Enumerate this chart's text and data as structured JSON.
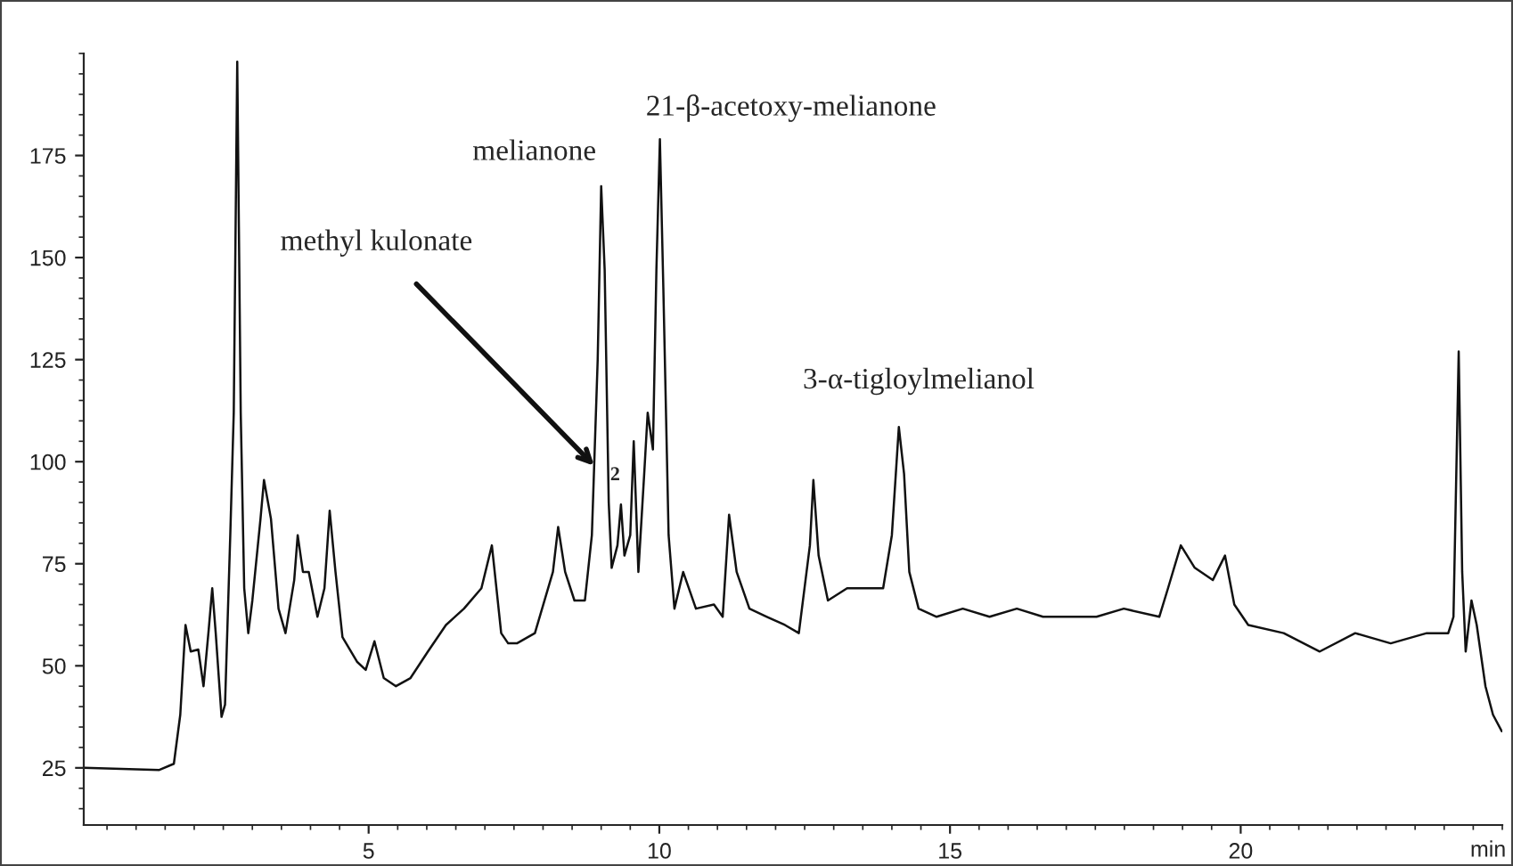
{
  "chart_data": {
    "type": "line",
    "xlabel": "min",
    "x": [
      0.1,
      1.4,
      1.65,
      1.76,
      1.85,
      1.94,
      2.07,
      2.16,
      2.25,
      2.31,
      2.37,
      2.47,
      2.53,
      2.62,
      2.68,
      2.74,
      2.8,
      2.86,
      2.93,
      3.0,
      3.14,
      3.2,
      3.32,
      3.45,
      3.57,
      3.72,
      3.78,
      3.87,
      3.97,
      4.12,
      4.24,
      4.33,
      4.43,
      4.55,
      4.8,
      4.95,
      5.1,
      5.26,
      5.47,
      5.72,
      6.02,
      6.33,
      6.64,
      6.94,
      7.12,
      7.28,
      7.4,
      7.55,
      7.86,
      8.17,
      8.26,
      8.38,
      8.54,
      8.72,
      8.84,
      8.94,
      9.0,
      9.06,
      9.13,
      9.18,
      9.28,
      9.34,
      9.4,
      9.5,
      9.56,
      9.64,
      9.74,
      9.8,
      9.89,
      9.95,
      10.01,
      10.07,
      10.16,
      10.26,
      10.41,
      10.63,
      10.94,
      11.09,
      11.2,
      11.33,
      11.55,
      11.85,
      12.16,
      12.4,
      12.59,
      12.65,
      12.74,
      12.9,
      13.23,
      13.54,
      13.85,
      14.0,
      14.12,
      14.21,
      14.3,
      14.46,
      14.77,
      15.22,
      15.68,
      16.15,
      16.6,
      17.06,
      17.52,
      17.99,
      18.6,
      18.75,
      18.97,
      19.21,
      19.52,
      19.73,
      19.89,
      20.13,
      20.74,
      21.36,
      21.97,
      22.58,
      23.2,
      23.57,
      23.66,
      23.75,
      23.81,
      23.87,
      23.97,
      24.06,
      24.21,
      24.34,
      24.49
    ],
    "series": [
      {
        "color": "#111111",
        "values": [
          25,
          24.5,
          26,
          38,
          60,
          53.5,
          54,
          45,
          59,
          69,
          58,
          37.5,
          40.5,
          82,
          112,
          198,
          112,
          69,
          58,
          66,
          86,
          95.5,
          86,
          64,
          58,
          71,
          82,
          73,
          73,
          62,
          69,
          88,
          73,
          57,
          51,
          49,
          56,
          47,
          45,
          47,
          53.5,
          60,
          64,
          69,
          79.5,
          58,
          55.5,
          55.5,
          58,
          73,
          84,
          73,
          66,
          66,
          82,
          125,
          167.5,
          147,
          90,
          74,
          79.5,
          89.5,
          77,
          82,
          105,
          73,
          97,
          112,
          103,
          147,
          179,
          142,
          82,
          64,
          73,
          64,
          65,
          62,
          87,
          73,
          64,
          62,
          60,
          58,
          79.5,
          95.5,
          77,
          66,
          69,
          69,
          69,
          82,
          108.5,
          97,
          73,
          64,
          62,
          64,
          62,
          64,
          62,
          62,
          62,
          64,
          62,
          69,
          79.5,
          74,
          71,
          77,
          65,
          60,
          58,
          53.5,
          58,
          55.5,
          58,
          58,
          62,
          127,
          73,
          53.5,
          66,
          60,
          45,
          38,
          34
        ]
      }
    ],
    "xlim": [
      0.1,
      24.5
    ],
    "ylim": [
      11,
      200
    ],
    "xticks": [
      5,
      10,
      15,
      20
    ],
    "yticks": [
      25,
      50,
      75,
      100,
      125,
      150,
      175
    ],
    "grid": false,
    "legend": false,
    "marker": "none",
    "line_style": "solid",
    "annotations": [
      {
        "text": "methyl kulonate",
        "x": 8.88,
        "y": 99
      },
      {
        "text": "melianone",
        "x": 9.0,
        "y": 167.5
      },
      {
        "text": "2",
        "x": 9.24,
        "y": 92
      },
      {
        "text": "21-β-acetoxy-melianone",
        "x": 10.01,
        "y": 179
      },
      {
        "text": "3-α-tigloylmelianol",
        "x": 14.12,
        "y": 108.5
      }
    ]
  }
}
